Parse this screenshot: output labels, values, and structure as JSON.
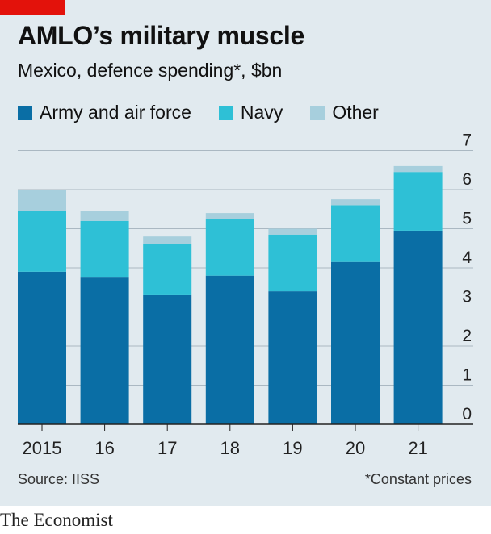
{
  "header": {
    "title": "AMLO’s military muscle",
    "subtitle": "Mexico, defence spending*, $bn"
  },
  "legend": [
    {
      "label": "Army and air force",
      "color": "#0a6ea5"
    },
    {
      "label": "Navy",
      "color": "#2ec0d6"
    },
    {
      "label": "Other",
      "color": "#a7cfdd"
    }
  ],
  "chart_data": {
    "type": "bar",
    "stacked": true,
    "categories": [
      "2015",
      "16",
      "17",
      "18",
      "19",
      "20",
      "21"
    ],
    "series": [
      {
        "name": "Army and air force",
        "color": "#0a6ea5",
        "values": [
          3.9,
          3.75,
          3.3,
          3.8,
          3.4,
          4.15,
          4.95
        ]
      },
      {
        "name": "Navy",
        "color": "#2ec0d6",
        "values": [
          1.55,
          1.45,
          1.3,
          1.45,
          1.45,
          1.45,
          1.5
        ]
      },
      {
        "name": "Other",
        "color": "#a7cfdd",
        "values": [
          0.55,
          0.25,
          0.2,
          0.15,
          0.15,
          0.15,
          0.15
        ]
      }
    ],
    "ylim": [
      0,
      7
    ],
    "yticks": [
      0,
      1,
      2,
      3,
      4,
      5,
      6,
      7
    ],
    "y_axis_side": "right",
    "grid": true
  },
  "footer": {
    "source": "Source: IISS",
    "note": "*Constant prices"
  },
  "brand": "The Economist"
}
